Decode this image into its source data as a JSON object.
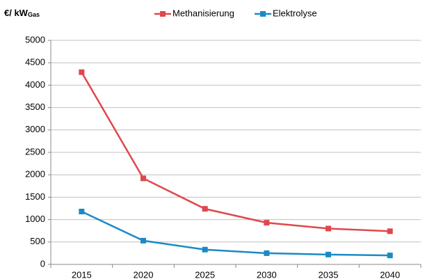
{
  "chart_data": {
    "type": "line",
    "y_label": {
      "main": "€/ kW",
      "subscript": "Gas"
    },
    "categories": [
      "2015",
      "2020",
      "2025",
      "2030",
      "2035",
      "2040"
    ],
    "series": [
      {
        "name": "Methanisierung",
        "color": "#e0474c",
        "values": [
          4290,
          1920,
          1240,
          930,
          800,
          740
        ]
      },
      {
        "name": "Elektrolyse",
        "color": "#1a8ac6",
        "values": [
          1180,
          530,
          330,
          250,
          220,
          200
        ]
      }
    ],
    "ylim": [
      0,
      5000
    ],
    "yticks": [
      0,
      500,
      1000,
      1500,
      2000,
      2500,
      3000,
      3500,
      4000,
      4500,
      5000
    ],
    "grid": true,
    "legend": "top"
  }
}
